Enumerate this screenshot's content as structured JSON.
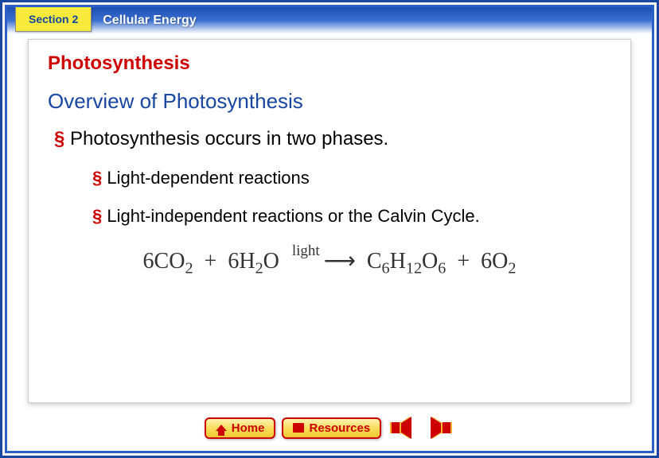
{
  "header": {
    "section_label": "Section 2",
    "chapter_title": "Cellular Energy"
  },
  "content": {
    "main_title": "Photosynthesis",
    "subtitle": "Overview of Photosynthesis",
    "bullet_main": "Photosynthesis occurs in two phases.",
    "sub_bullets": [
      "Light-dependent reactions",
      "Light-independent reactions or the Calvin Cycle."
    ],
    "equation": {
      "reactant1": {
        "coef": "6",
        "formula": "CO",
        "sub": "2"
      },
      "plus1": "+",
      "reactant2": {
        "coef": "6",
        "formula": "H",
        "sub": "2",
        "tail": "O"
      },
      "arrow_label": "light",
      "product1": {
        "formula": "C",
        "sub1": "6",
        "mid": "H",
        "sub2": "12",
        "tail": "O",
        "sub3": "6"
      },
      "plus2": "+",
      "product2": {
        "coef": "6",
        "formula": "O",
        "sub": "2"
      }
    }
  },
  "footer": {
    "home_label": "Home",
    "resources_label": "Resources"
  },
  "colors": {
    "accent_red": "#cc0000",
    "accent_blue": "#1846a0",
    "tab_yellow": "#f7ea3b",
    "frame_blue": "#2d5fc8"
  }
}
